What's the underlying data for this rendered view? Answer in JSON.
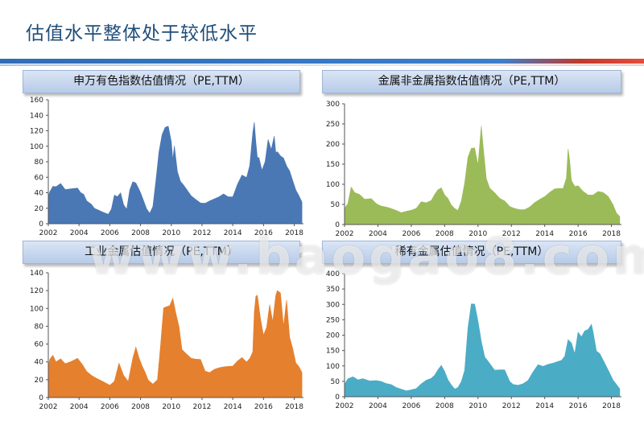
{
  "page_title": "估值水平整体处于较低水平",
  "watermark": "www.baogao8.com",
  "chart_data": [
    {
      "type": "area",
      "title": "申万有色指数估值情况（PE,TTM）",
      "color": "#4a78b5",
      "ylim": [
        0,
        160
      ],
      "yticks": [
        0,
        20,
        40,
        60,
        80,
        100,
        120,
        140,
        160
      ],
      "xlim": [
        2002,
        2018.6
      ],
      "xticks": [
        2002,
        2004,
        2006,
        2008,
        2010,
        2012,
        2014,
        2016,
        2018
      ],
      "series": [
        {
          "x": [
            2002.0,
            2002.1,
            2002.3,
            2002.5,
            2002.8,
            2003.1,
            2003.5,
            2003.9,
            2004.1,
            2004.3,
            2004.5,
            2004.8,
            2005.0,
            2005.3,
            2005.6,
            2005.9,
            2006.1,
            2006.3,
            2006.5,
            2006.7,
            2006.9,
            2007.1,
            2007.3,
            2007.5,
            2007.7,
            2007.9,
            2008.0,
            2008.2,
            2008.4,
            2008.6,
            2008.8,
            2009.0,
            2009.2,
            2009.4,
            2009.6,
            2009.8,
            2010.0,
            2010.1,
            2010.2,
            2010.4,
            2010.6,
            2010.8,
            2011.0,
            2011.3,
            2011.6,
            2011.9,
            2012.2,
            2012.5,
            2012.8,
            2013.1,
            2013.4,
            2013.7,
            2014.0,
            2014.3,
            2014.6,
            2014.9,
            2015.1,
            2015.3,
            2015.4,
            2015.5,
            2015.6,
            2015.7,
            2015.9,
            2016.1,
            2016.3,
            2016.5,
            2016.7,
            2016.8,
            2016.9,
            2017.1,
            2017.3,
            2017.5,
            2017.7,
            2017.9,
            2018.1,
            2018.3,
            2018.5
          ],
          "y": [
            35,
            45,
            50,
            48,
            52,
            45,
            48,
            52,
            45,
            40,
            30,
            25,
            20,
            18,
            16,
            14,
            20,
            38,
            35,
            40,
            25,
            20,
            50,
            60,
            55,
            45,
            40,
            30,
            20,
            15,
            25,
            60,
            95,
            115,
            125,
            130,
            115,
            95,
            110,
            70,
            55,
            50,
            45,
            38,
            35,
            30,
            28,
            30,
            32,
            35,
            40,
            38,
            40,
            55,
            65,
            60,
            75,
            120,
            140,
            120,
            95,
            90,
            70,
            80,
            110,
            100,
            125,
            105,
            100,
            90,
            85,
            75,
            70,
            60,
            50,
            40,
            28
          ]
        }
      ]
    },
    {
      "type": "area",
      "title": "金属非金属指数估值情况（PE,TTM）",
      "color": "#9bbb59",
      "ylim": [
        0,
        300
      ],
      "yticks": [
        0,
        50,
        100,
        150,
        200,
        250,
        300
      ],
      "xlim": [
        2002,
        2018.6
      ],
      "xticks": [
        2002,
        2004,
        2006,
        2008,
        2010,
        2012,
        2014,
        2016,
        2018
      ],
      "series": [
        {
          "x": [
            2002.0,
            2002.2,
            2002.4,
            2002.6,
            2002.9,
            2003.2,
            2003.6,
            2003.9,
            2004.2,
            2004.5,
            2004.8,
            2005.1,
            2005.4,
            2005.7,
            2006.0,
            2006.3,
            2006.6,
            2006.9,
            2007.2,
            2007.4,
            2007.6,
            2007.8,
            2008.0,
            2008.2,
            2008.4,
            2008.6,
            2008.8,
            2009.0,
            2009.2,
            2009.4,
            2009.6,
            2009.8,
            2010.0,
            2010.2,
            2010.3,
            2010.5,
            2010.7,
            2011.0,
            2011.3,
            2011.6,
            2011.9,
            2012.2,
            2012.5,
            2012.8,
            2013.1,
            2013.4,
            2013.7,
            2014.0,
            2014.3,
            2014.6,
            2014.9,
            2015.1,
            2015.3,
            2015.4,
            2015.5,
            2015.6,
            2015.8,
            2016.0,
            2016.3,
            2016.6,
            2016.9,
            2017.2,
            2017.5,
            2017.8,
            2018.1,
            2018.3,
            2018.5
          ],
          "y": [
            40,
            55,
            95,
            80,
            75,
            65,
            70,
            60,
            50,
            45,
            40,
            35,
            30,
            35,
            40,
            45,
            60,
            55,
            60,
            75,
            90,
            100,
            85,
            70,
            50,
            40,
            35,
            60,
            110,
            190,
            210,
            200,
            150,
            245,
            200,
            120,
            100,
            90,
            70,
            60,
            45,
            40,
            38,
            40,
            50,
            60,
            65,
            70,
            80,
            90,
            95,
            100,
            130,
            200,
            160,
            110,
            95,
            100,
            90,
            85,
            80,
            85,
            80,
            70,
            50,
            30,
            20
          ]
        }
      ]
    },
    {
      "type": "area",
      "title": "工业金属估值情况（PE,TTM）",
      "color": "#e5802e",
      "ylim": [
        0,
        140
      ],
      "yticks": [
        0,
        20,
        40,
        60,
        80,
        100,
        120,
        140
      ],
      "xlim": [
        2002,
        2018.6
      ],
      "xticks": [
        2002,
        2004,
        2006,
        2008,
        2010,
        2012,
        2014,
        2016,
        2018
      ],
      "series": [
        {
          "x": [
            2002.0,
            2002.1,
            2002.3,
            2002.5,
            2002.8,
            2003.1,
            2003.5,
            2003.9,
            2004.2,
            2004.5,
            2004.8,
            2005.1,
            2005.4,
            2005.7,
            2006.0,
            2006.3,
            2006.6,
            2006.9,
            2007.2,
            2007.5,
            2007.7,
            2007.9,
            2008.1,
            2008.3,
            2008.5,
            2008.8,
            2009.1,
            2009.3,
            2009.5,
            2009.7,
            2009.9,
            2010.1,
            2010.3,
            2010.5,
            2010.7,
            2011.0,
            2011.3,
            2011.6,
            2011.9,
            2012.2,
            2012.5,
            2012.8,
            2013.1,
            2013.4,
            2013.7,
            2014.0,
            2014.3,
            2014.6,
            2014.9,
            2015.1,
            2015.3,
            2015.4,
            2015.5,
            2015.6,
            2015.8,
            2016.0,
            2016.2,
            2016.4,
            2016.6,
            2016.8,
            2016.9,
            2017.1,
            2017.3,
            2017.5,
            2017.7,
            2017.9,
            2018.1,
            2018.3,
            2018.5
          ],
          "y": [
            35,
            45,
            48,
            40,
            44,
            40,
            45,
            50,
            40,
            30,
            25,
            22,
            20,
            18,
            16,
            20,
            40,
            25,
            18,
            45,
            60,
            50,
            40,
            30,
            20,
            15,
            20,
            60,
            110,
            118,
            112,
            115,
            95,
            80,
            55,
            52,
            50,
            48,
            45,
            30,
            28,
            32,
            35,
            38,
            40,
            38,
            42,
            45,
            40,
            45,
            55,
            110,
            125,
            120,
            90,
            70,
            80,
            110,
            95,
            130,
            128,
            120,
            80,
            110,
            70,
            60,
            45,
            38,
            28
          ]
        }
      ]
    },
    {
      "type": "area",
      "title": "稀有金属估值情况（PE,TTM）",
      "color": "#4bacc6",
      "ylim": [
        0,
        400
      ],
      "yticks": [
        0,
        50,
        100,
        150,
        200,
        250,
        300,
        350,
        400
      ],
      "xlim": [
        2002,
        2018.6
      ],
      "xticks": [
        2002,
        2004,
        2006,
        2008,
        2010,
        2012,
        2014,
        2016,
        2018
      ],
      "series": [
        {
          "x": [
            2002.0,
            2002.2,
            2002.5,
            2002.8,
            2003.1,
            2003.5,
            2003.9,
            2004.2,
            2004.5,
            2004.8,
            2005.1,
            2005.4,
            2005.7,
            2006.0,
            2006.3,
            2006.6,
            2006.9,
            2007.2,
            2007.4,
            2007.6,
            2007.8,
            2008.0,
            2008.2,
            2008.4,
            2008.6,
            2008.8,
            2009.0,
            2009.2,
            2009.4,
            2009.6,
            2009.8,
            2010.0,
            2010.2,
            2010.4,
            2010.6,
            2010.8,
            2011.0,
            2011.3,
            2011.6,
            2011.9,
            2012.1,
            2012.4,
            2012.7,
            2013.0,
            2013.3,
            2013.6,
            2013.9,
            2014.2,
            2014.5,
            2014.8,
            2015.0,
            2015.2,
            2015.4,
            2015.6,
            2015.8,
            2016.0,
            2016.2,
            2016.4,
            2016.6,
            2016.8,
            2016.9,
            2017.1,
            2017.3,
            2017.6,
            2017.9,
            2018.1,
            2018.3,
            2018.5
          ],
          "y": [
            40,
            60,
            65,
            55,
            60,
            55,
            60,
            55,
            45,
            40,
            30,
            25,
            20,
            25,
            30,
            45,
            55,
            60,
            70,
            90,
            110,
            95,
            60,
            40,
            25,
            30,
            50,
            90,
            250,
            340,
            320,
            250,
            180,
            130,
            120,
            110,
            100,
            95,
            90,
            50,
            40,
            38,
            45,
            60,
            90,
            110,
            100,
            105,
            110,
            120,
            130,
            150,
            200,
            180,
            140,
            210,
            200,
            230,
            250,
            260,
            220,
            150,
            140,
            110,
            80,
            60,
            45,
            25
          ]
        }
      ]
    }
  ]
}
